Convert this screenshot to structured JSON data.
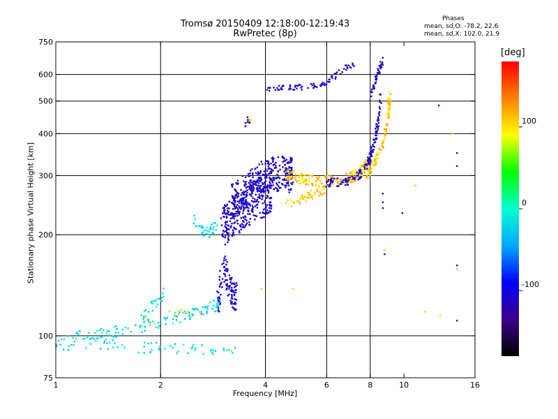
{
  "chart_data": {
    "type": "scatter",
    "title": "Tromsø 20150409 12:18:00-12:19:43",
    "subtitle": "RwPretec (8p)",
    "stats": {
      "header": "Phases",
      "o_line": "mean, sd,O: -78.2, 22.6",
      "x_line": "mean, sd,X: 102.0, 21.9"
    },
    "xlabel": "Frequency [MHz]",
    "ylabel": "Stationary phase Virtual Height [km]",
    "x_scale": "log",
    "y_scale": "log",
    "xlim": [
      1,
      16
    ],
    "ylim": [
      75,
      750
    ],
    "x_ticks": [
      1,
      2,
      4,
      6,
      8,
      10,
      16
    ],
    "y_ticks": [
      75,
      100,
      200,
      300,
      400,
      500,
      600,
      750
    ],
    "x_gridlines": [
      2,
      4,
      6,
      8
    ],
    "y_gridlines": [
      100,
      200,
      300,
      400,
      500,
      600
    ],
    "grid": true,
    "colorbar": {
      "unit": "[deg]",
      "range": [
        -180,
        180
      ],
      "ticks": [
        100,
        0,
        -100
      ],
      "colors": [
        "#000000",
        "#3c008a",
        "#0000ff",
        "#00a8ff",
        "#00ffd0",
        "#00ff00",
        "#ffff00",
        "#ff8000",
        "#ff0000"
      ]
    },
    "traces": [
      {
        "f": [
          1.0,
          1.25,
          1.6,
          2.0,
          2.4,
          2.8,
          2.95
        ],
        "h": [
          98,
          100,
          104,
          110,
          116,
          122,
          124
        ],
        "phase": -20,
        "jitter_h": 0.04,
        "count": 120
      },
      {
        "f": [
          1.0,
          1.3,
          1.6,
          2.0,
          2.5,
          3.3
        ],
        "h": [
          94,
          95,
          93,
          92,
          91,
          89
        ],
        "phase": -20,
        "jitter_h": 0.04,
        "count": 70
      },
      {
        "f": [
          1.75,
          1.9,
          2.05
        ],
        "h": [
          110,
          124,
          134
        ],
        "phase": -10,
        "jitter_h": 0.05,
        "count": 30
      },
      {
        "f": [
          1.8,
          2.2,
          2.6
        ],
        "h": [
          110,
          113,
          117
        ],
        "phase": 100,
        "jitter_h": 0.05,
        "count": 12
      },
      {
        "f": [
          2.9,
          3.05,
          3.2,
          3.3
        ],
        "h": [
          124,
          160,
          135,
          130
        ],
        "phase": -105,
        "jitter_h": 0.1,
        "count": 110
      },
      {
        "f": [
          2.45,
          2.6,
          2.75,
          2.9
        ],
        "h": [
          225,
          208,
          204,
          210
        ],
        "phase": -20,
        "jitter_h": 0.04,
        "count": 40
      },
      {
        "f": [
          3.0,
          3.3,
          3.7,
          4.2
        ],
        "h": [
          210,
          230,
          250,
          270
        ],
        "phase": -110,
        "jitter_h": 0.14,
        "count": 300
      },
      {
        "f": [
          3.2,
          3.6,
          4.0,
          4.5,
          4.8
        ],
        "h": [
          250,
          275,
          300,
          305,
          300
        ],
        "phase": -110,
        "jitter_h": 0.12,
        "count": 320
      },
      {
        "f": [
          4.6,
          5.2,
          6.0,
          6.8,
          7.4,
          7.9
        ],
        "h": [
          300,
          292,
          288,
          292,
          302,
          330
        ],
        "phase": 110,
        "jitter_h": 0.04,
        "count": 200
      },
      {
        "f": [
          4.6,
          5.0,
          5.5,
          6.0
        ],
        "h": [
          245,
          255,
          265,
          275
        ],
        "phase": 110,
        "jitter_h": 0.03,
        "count": 50
      },
      {
        "f": [
          6.0,
          6.8,
          7.4,
          7.9,
          8.2,
          8.4,
          8.6
        ],
        "h": [
          285,
          288,
          300,
          330,
          370,
          420,
          520
        ],
        "phase": -110,
        "jitter_h": 0.03,
        "count": 150
      },
      {
        "f": [
          7.8,
          8.3,
          8.7,
          9.0,
          9.1
        ],
        "h": [
          300,
          330,
          370,
          440,
          520
        ],
        "phase": 110,
        "jitter_h": 0.03,
        "count": 110
      },
      {
        "f": [
          8.0,
          8.2,
          8.4,
          8.6,
          8.7
        ],
        "h": [
          520,
          560,
          600,
          640,
          670
        ],
        "phase": -110,
        "jitter_h": 0.02,
        "count": 40
      },
      {
        "f": [
          4.0,
          4.4,
          4.8,
          5.3,
          5.8,
          6.3,
          6.8,
          7.2
        ],
        "h": [
          545,
          550,
          548,
          550,
          560,
          590,
          625,
          640
        ],
        "phase": -110,
        "jitter_h": 0.02,
        "count": 80
      },
      {
        "f": [
          3.5,
          3.7
        ],
        "h": [
          430,
          450
        ],
        "phase": -100,
        "jitter_h": 0.03,
        "count": 10
      },
      {
        "f": [
          3.6,
          3.7
        ],
        "h": [
          435,
          445
        ],
        "phase": 110,
        "jitter_h": 0.03,
        "count": 4
      }
    ],
    "isolated_points": [
      {
        "f": 12.6,
        "h": 485,
        "phase": -110
      },
      {
        "f": 13.8,
        "h": 400,
        "phase": 110
      },
      {
        "f": 14.2,
        "h": 350,
        "phase": -110
      },
      {
        "f": 14.2,
        "h": 320,
        "phase": -110
      },
      {
        "f": 8.7,
        "h": 265,
        "phase": -110
      },
      {
        "f": 8.7,
        "h": 250,
        "phase": -110
      },
      {
        "f": 8.7,
        "h": 240,
        "phase": -120
      },
      {
        "f": 9.9,
        "h": 232,
        "phase": -110
      },
      {
        "f": 10.8,
        "h": 280,
        "phase": 110
      },
      {
        "f": 8.8,
        "h": 180,
        "phase": 110
      },
      {
        "f": 8.8,
        "h": 175,
        "phase": -110
      },
      {
        "f": 14.2,
        "h": 162,
        "phase": -110
      },
      {
        "f": 14.2,
        "h": 158,
        "phase": 110
      },
      {
        "f": 11.5,
        "h": 118,
        "phase": 110
      },
      {
        "f": 12.7,
        "h": 115,
        "phase": 110
      },
      {
        "f": 14.2,
        "h": 111,
        "phase": -110
      },
      {
        "f": 4.8,
        "h": 138,
        "phase": 110
      },
      {
        "f": 3.9,
        "h": 138,
        "phase": 110
      },
      {
        "f": 3.2,
        "h": 90,
        "phase": 110
      }
    ]
  }
}
